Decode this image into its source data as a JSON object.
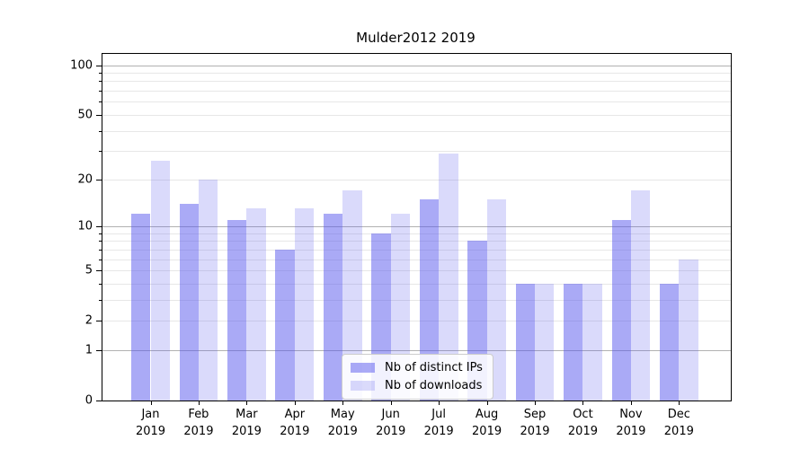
{
  "title": "Mulder2012 2019",
  "colors": {
    "ips_bar": "rgba(85,85,238,0.5)",
    "downloads_bar": "rgba(85,85,238,0.22)",
    "grid_major": "#b1b1b1",
    "grid_minor": "#e7e7e7",
    "axis": "#000000"
  },
  "legend": {
    "items": [
      {
        "label": "Nb of distinct IPs"
      },
      {
        "label": "Nb of downloads"
      }
    ]
  },
  "y_axis": {
    "tick_labels": [
      "100",
      "50",
      "20",
      "10",
      "5",
      "2",
      "1",
      "0"
    ]
  },
  "x_axis": {
    "year": "2019"
  },
  "chart_data": {
    "type": "bar",
    "title": "Mulder2012 2019",
    "categories": [
      "Jan 2019",
      "Feb 2019",
      "Mar 2019",
      "Apr 2019",
      "May 2019",
      "Jun 2019",
      "Jul 2019",
      "Aug 2019",
      "Sep 2019",
      "Oct 2019",
      "Nov 2019",
      "Dec 2019"
    ],
    "series": [
      {
        "name": "Nb of distinct IPs",
        "values": [
          12,
          14,
          11,
          7,
          12,
          9,
          15,
          8,
          4,
          4,
          11,
          4
        ]
      },
      {
        "name": "Nb of downloads",
        "values": [
          26,
          20,
          13,
          13,
          17,
          12,
          29,
          15,
          4,
          4,
          17,
          6
        ]
      }
    ],
    "xlabel": "",
    "ylabel": "",
    "yscale": "log1p",
    "ylim": [
      0,
      117
    ],
    "yticks": [
      100,
      50,
      20,
      10,
      5,
      2,
      1,
      0
    ],
    "major_gridlines": [
      1,
      10,
      100
    ],
    "minor_gridlines": [
      2,
      3,
      4,
      5,
      6,
      7,
      8,
      9,
      20,
      30,
      40,
      50,
      60,
      70,
      80,
      90
    ],
    "grid": true,
    "legend_position": "lower-center"
  }
}
